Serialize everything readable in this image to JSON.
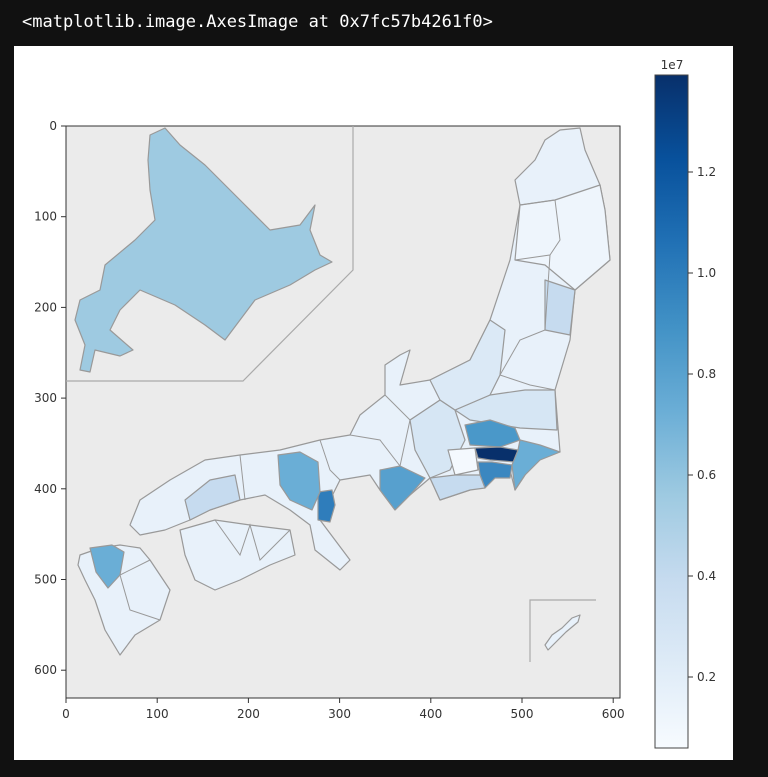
{
  "output": {
    "repr_text": "<matplotlib.image.AxesImage at 0x7fc57b4261f0>"
  },
  "chart_data": {
    "type": "heatmap",
    "title": "",
    "xlabel": "",
    "ylabel": "",
    "xlim": [
      0,
      607
    ],
    "ylim": [
      631,
      0
    ],
    "x_ticks": [
      "0",
      "100",
      "200",
      "300",
      "400",
      "500",
      "600"
    ],
    "y_ticks": [
      "0",
      "100",
      "200",
      "300",
      "400",
      "500",
      "600"
    ],
    "colorbar": {
      "colormap": "Blues",
      "range": [
        570000,
        13900000
      ],
      "offset_label": "1e7",
      "ticks": [
        "0.2",
        "0.4",
        "0.6",
        "0.8",
        "1.0",
        "1.2"
      ]
    },
    "background_color": "#ebebeb",
    "region_colors": {
      "tokyo": "#08306b",
      "osaka": "#2f7dbb",
      "kanagawa": "#3b87c0",
      "saitama": "#4a98c9",
      "aichi": "#57a0ce",
      "chiba": "#6aaed6",
      "hyogo": "#6aaed6",
      "fukuoka": "#6aaed6",
      "hokkaido": "#9ecae1",
      "shizuoka": "#c6dbef",
      "other": "#e8f1fa"
    }
  }
}
